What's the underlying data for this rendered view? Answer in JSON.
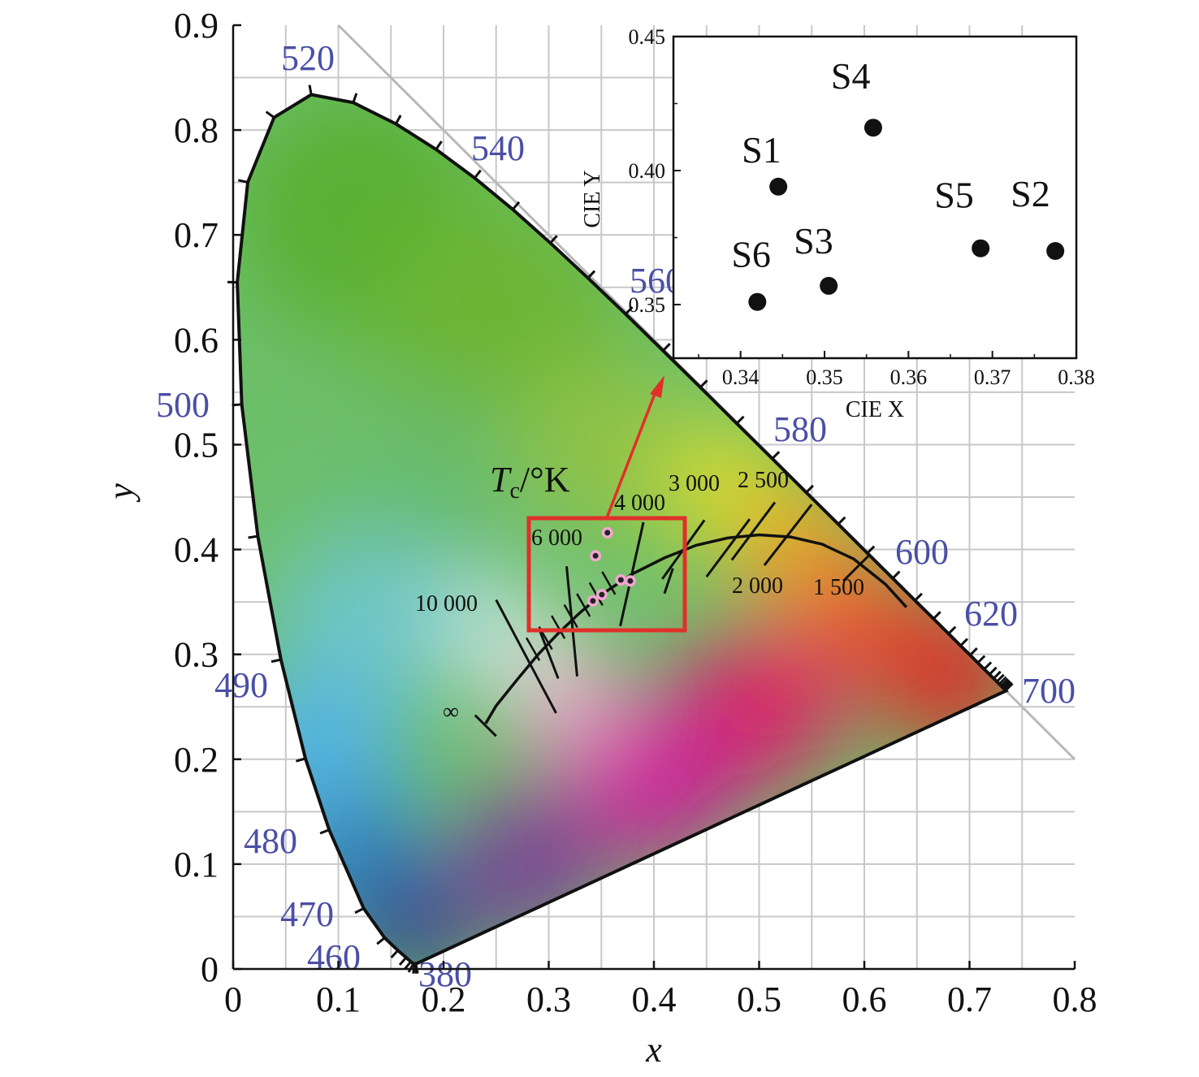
{
  "chart_data": [
    {
      "type": "scatter",
      "title": "",
      "xlabel": "x",
      "ylabel": "y",
      "xlim": [
        0,
        0.8
      ],
      "ylim": [
        0,
        0.9
      ],
      "x_ticks": [
        "0",
        "0.1",
        "0.2",
        "0.3",
        "0.4",
        "0.5",
        "0.6",
        "0.7",
        "0.8"
      ],
      "y_ticks": [
        "0",
        "0.1",
        "0.2",
        "0.3",
        "0.4",
        "0.5",
        "0.6",
        "0.7",
        "0.8",
        "0.9"
      ],
      "grid": true,
      "spectral_locus": [
        {
          "nm": "380",
          "x": 0.1741,
          "y": 0.005
        },
        {
          "nm": "460",
          "x": 0.144,
          "y": 0.0297
        },
        {
          "nm": "470",
          "x": 0.1241,
          "y": 0.0578
        },
        {
          "nm": "480",
          "x": 0.0913,
          "y": 0.1327
        },
        {
          "nm": "490",
          "x": 0.0454,
          "y": 0.295
        },
        {
          "nm": "500",
          "x": 0.0082,
          "y": 0.5384
        },
        {
          "nm": "520",
          "x": 0.0743,
          "y": 0.8338
        },
        {
          "nm": "540",
          "x": 0.2296,
          "y": 0.7543
        },
        {
          "nm": "560",
          "x": 0.3731,
          "y": 0.6245
        },
        {
          "nm": "580",
          "x": 0.5125,
          "y": 0.4866
        },
        {
          "nm": "600",
          "x": 0.627,
          "y": 0.3725
        },
        {
          "nm": "620",
          "x": 0.6915,
          "y": 0.3083
        },
        {
          "nm": "700",
          "x": 0.7347,
          "y": 0.2653
        }
      ],
      "planckian_locus_labels": [
        "∞",
        "10 000",
        "6 000",
        "4 000",
        "3 000",
        "2 500",
        "2 000",
        "1 500"
      ],
      "tc_label_main": "T",
      "tc_label_sub": "c",
      "tc_label_unit": "/°K",
      "highlight_colors": {
        "box": "#e0302a",
        "arrow": "#e0302a",
        "marker_halo": "#f2a6d2"
      }
    },
    {
      "type": "scatter",
      "title": "",
      "xlabel": "CIE X",
      "ylabel": "CIE Y",
      "xlim": [
        0.332,
        0.38
      ],
      "ylim": [
        0.33,
        0.45
      ],
      "x_ticks": [
        "0.34",
        "0.35",
        "0.36",
        "0.37",
        "0.38"
      ],
      "y_ticks": [
        "0.35",
        "0.40",
        "0.45"
      ],
      "grid": false,
      "points": [
        {
          "name": "S1",
          "x": 0.3445,
          "y": 0.394
        },
        {
          "name": "S2",
          "x": 0.3775,
          "y": 0.37
        },
        {
          "name": "S3",
          "x": 0.3505,
          "y": 0.357
        },
        {
          "name": "S4",
          "x": 0.3558,
          "y": 0.416
        },
        {
          "name": "S5",
          "x": 0.3686,
          "y": 0.371
        },
        {
          "name": "S6",
          "x": 0.342,
          "y": 0.351
        }
      ]
    }
  ]
}
